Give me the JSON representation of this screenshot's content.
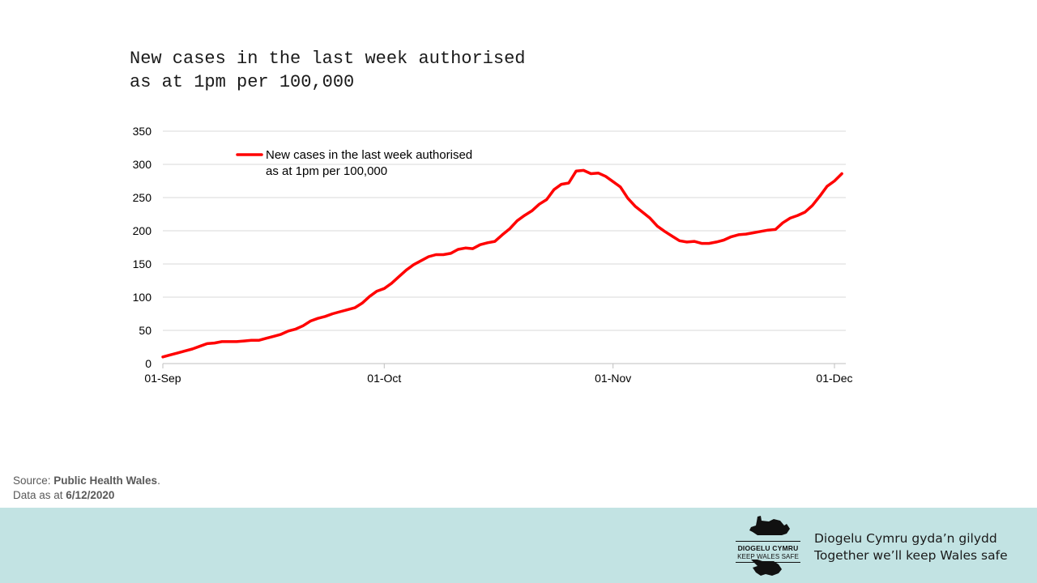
{
  "slide": {
    "title_line1": "New cases in the last week authorised",
    "title_line2": "as at 1pm per 100,000"
  },
  "source": {
    "label": "Source: ",
    "org": "Public Health Wales",
    "period": ".",
    "data_label": "Data as at ",
    "date": "6/12/2020"
  },
  "footer": {
    "logo_line1": "DIOGELU CYMRU",
    "logo_line2": "KEEP WALES SAFE",
    "tagline_welsh": "Diogelu Cymru gyda’n gilydd",
    "tagline_english": "Together we’ll keep Wales safe",
    "logo_color": "#111111",
    "background": "#c2e3e3"
  },
  "chart_data": {
    "type": "line",
    "ylim": [
      0,
      350
    ],
    "yticks": [
      0,
      50,
      100,
      150,
      200,
      250,
      300,
      350
    ],
    "xlim": [
      "2020-09-01",
      "2020-12-01"
    ],
    "xticks": [
      {
        "label": "01-Sep",
        "date": "2020-09-01"
      },
      {
        "label": "01-Oct",
        "date": "2020-10-01"
      },
      {
        "label": "01-Nov",
        "date": "2020-11-01"
      },
      {
        "label": "01-Dec",
        "date": "2020-12-01"
      }
    ],
    "grid": true,
    "legend_position": "top-left",
    "series": [
      {
        "name": "New cases in the last week authorised\nas at 1pm per 100,000",
        "color": "#ff0000",
        "x": [
          "2020-09-01",
          "2020-09-02",
          "2020-09-03",
          "2020-09-04",
          "2020-09-05",
          "2020-09-06",
          "2020-09-07",
          "2020-09-08",
          "2020-09-09",
          "2020-09-10",
          "2020-09-11",
          "2020-09-12",
          "2020-09-13",
          "2020-09-14",
          "2020-09-15",
          "2020-09-16",
          "2020-09-17",
          "2020-09-18",
          "2020-09-19",
          "2020-09-20",
          "2020-09-21",
          "2020-09-22",
          "2020-09-23",
          "2020-09-24",
          "2020-09-25",
          "2020-09-26",
          "2020-09-27",
          "2020-09-28",
          "2020-09-29",
          "2020-09-30",
          "2020-10-01",
          "2020-10-02",
          "2020-10-03",
          "2020-10-04",
          "2020-10-05",
          "2020-10-06",
          "2020-10-07",
          "2020-10-08",
          "2020-10-09",
          "2020-10-10",
          "2020-10-11",
          "2020-10-12",
          "2020-10-13",
          "2020-10-14",
          "2020-10-15",
          "2020-10-16",
          "2020-10-17",
          "2020-10-18",
          "2020-10-19",
          "2020-10-20",
          "2020-10-21",
          "2020-10-22",
          "2020-10-23",
          "2020-10-24",
          "2020-10-25",
          "2020-10-26",
          "2020-10-27",
          "2020-10-28",
          "2020-10-29",
          "2020-10-30",
          "2020-10-31",
          "2020-11-01",
          "2020-11-02",
          "2020-11-03",
          "2020-11-04",
          "2020-11-05",
          "2020-11-06",
          "2020-11-07",
          "2020-11-08",
          "2020-11-09",
          "2020-11-10",
          "2020-11-11",
          "2020-11-12",
          "2020-11-13",
          "2020-11-14",
          "2020-11-15",
          "2020-11-16",
          "2020-11-17",
          "2020-11-18",
          "2020-11-19",
          "2020-11-20",
          "2020-11-21",
          "2020-11-22",
          "2020-11-23",
          "2020-11-24",
          "2020-11-25",
          "2020-11-26",
          "2020-11-27",
          "2020-11-28",
          "2020-11-29",
          "2020-11-30",
          "2020-12-01",
          "2020-12-02"
        ],
        "y": [
          10,
          13,
          16,
          19,
          22,
          26,
          30,
          31,
          33,
          33,
          33,
          34,
          35,
          35,
          38,
          41,
          44,
          49,
          52,
          57,
          64,
          68,
          71,
          75,
          78,
          81,
          84,
          91,
          101,
          109,
          113,
          121,
          131,
          141,
          149,
          155,
          161,
          164,
          164,
          166,
          172,
          174,
          173,
          179,
          182,
          184,
          194,
          203,
          215,
          223,
          230,
          240,
          247,
          262,
          270,
          272,
          290,
          291,
          286,
          287,
          282,
          274,
          266,
          249,
          237,
          228,
          219,
          207,
          199,
          192,
          185,
          183,
          184,
          181,
          181,
          183,
          186,
          191,
          194,
          195,
          197,
          199,
          201,
          202,
          212,
          219,
          223,
          228,
          238,
          252,
          267,
          275,
          286
        ]
      }
    ]
  }
}
